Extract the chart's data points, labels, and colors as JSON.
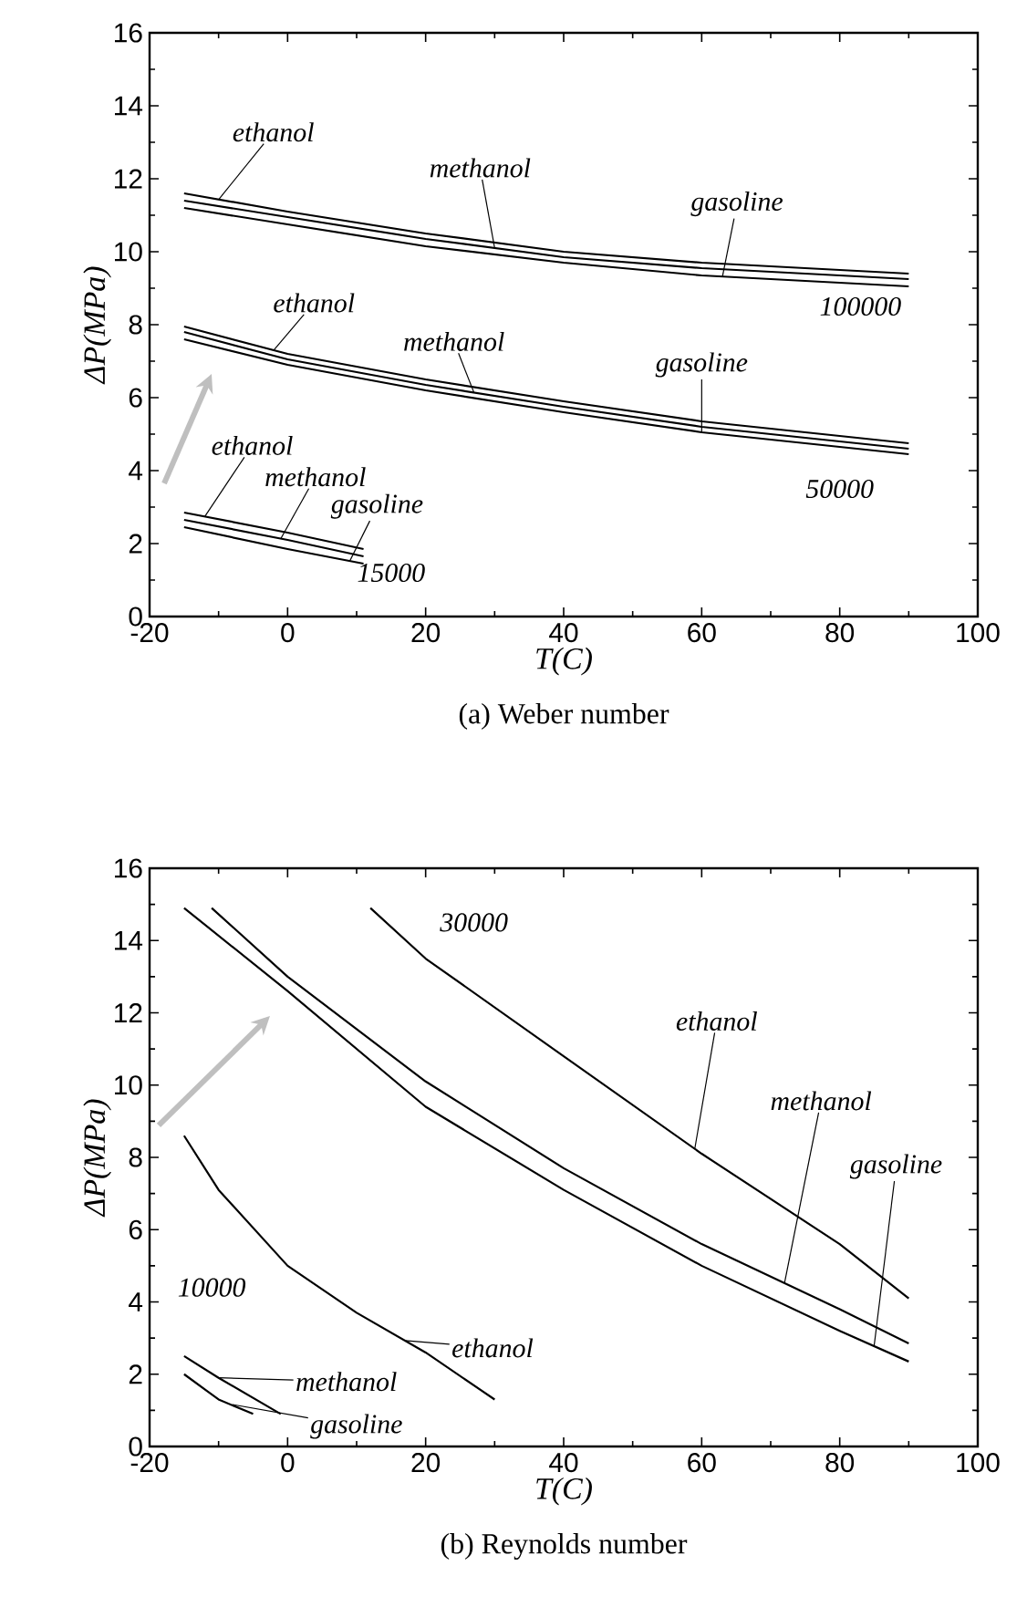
{
  "chart_data": [
    {
      "type": "line",
      "title": "(a) Weber number",
      "xlabel": "T(C)",
      "ylabel": "ΔP(MPa)",
      "xlim": [
        -20,
        100
      ],
      "ylim": [
        0,
        16
      ],
      "xticks": [
        -20,
        0,
        20,
        40,
        60,
        80,
        100
      ],
      "yticks": [
        0,
        2,
        4,
        6,
        8,
        10,
        12,
        14,
        16
      ],
      "marker": "none",
      "line_style": "solid",
      "series": [
        {
          "color": "#000000",
          "x": [
            -15,
            0,
            20,
            40,
            60,
            90
          ],
          "values": [
            11.6,
            11.1,
            10.5,
            10.0,
            9.7,
            9.4
          ]
        },
        {
          "color": "#000000",
          "x": [
            -15,
            0,
            20,
            40,
            60,
            90
          ],
          "values": [
            11.4,
            10.95,
            10.35,
            9.85,
            9.55,
            9.25
          ]
        },
        {
          "color": "#000000",
          "x": [
            -15,
            0,
            20,
            40,
            60,
            90
          ],
          "values": [
            11.2,
            10.75,
            10.15,
            9.7,
            9.35,
            9.05
          ]
        },
        {
          "color": "#000000",
          "x": [
            -15,
            0,
            20,
            40,
            60,
            90
          ],
          "values": [
            7.95,
            7.2,
            6.5,
            5.9,
            5.35,
            4.75
          ]
        },
        {
          "color": "#000000",
          "x": [
            -15,
            0,
            20,
            40,
            60,
            90
          ],
          "values": [
            7.8,
            7.05,
            6.35,
            5.75,
            5.2,
            4.6
          ]
        },
        {
          "color": "#000000",
          "x": [
            -15,
            0,
            20,
            40,
            60,
            90
          ],
          "values": [
            7.6,
            6.9,
            6.2,
            5.6,
            5.05,
            4.45
          ]
        },
        {
          "color": "#000000",
          "x": [
            -15,
            0,
            11
          ],
          "values": [
            2.85,
            2.3,
            1.85
          ]
        },
        {
          "color": "#000000",
          "x": [
            -15,
            0,
            11
          ],
          "values": [
            2.65,
            2.1,
            1.65
          ]
        },
        {
          "color": "#000000",
          "x": [
            -15,
            0,
            11
          ],
          "values": [
            2.45,
            1.85,
            1.45
          ]
        }
      ],
      "annotations": [
        {
          "text": "ethanol",
          "x": -10,
          "y": 11.43
        },
        {
          "text": "methanol",
          "x": 30,
          "y": 10.1
        },
        {
          "text": "gasoline",
          "x": 63,
          "y": 9.31
        },
        "100000",
        {
          "text": "ethanol",
          "x": -2,
          "y": 7.3
        },
        {
          "text": "methanol",
          "x": 27,
          "y": 6.14
        },
        {
          "text": "gasoline",
          "x": 60,
          "y": 5.05
        },
        "50000",
        {
          "text": "ethanol",
          "x": -12,
          "y": 2.74
        },
        {
          "text": "methanol",
          "x": -1,
          "y": 2.13
        },
        {
          "text": "gasoline",
          "x": 9,
          "y": 1.52
        },
        "15000"
      ]
    },
    {
      "type": "line",
      "title": "(b) Reynolds number",
      "xlabel": "T(C)",
      "ylabel": "ΔP(MPa)",
      "xlim": [
        -20,
        100
      ],
      "ylim": [
        0,
        16
      ],
      "xticks": [
        -20,
        0,
        20,
        40,
        60,
        80,
        100
      ],
      "yticks": [
        0,
        2,
        4,
        6,
        8,
        10,
        12,
        14,
        16
      ],
      "marker": "none",
      "line_style": "solid",
      "series": [
        {
          "color": "#000000",
          "x": [
            12,
            20,
            40,
            60,
            80,
            90
          ],
          "values": [
            14.9,
            13.5,
            10.8,
            8.1,
            5.6,
            4.1
          ]
        },
        {
          "color": "#000000",
          "x": [
            -11,
            0,
            20,
            40,
            60,
            80,
            90
          ],
          "values": [
            14.9,
            13.0,
            10.1,
            7.7,
            5.6,
            3.8,
            2.85
          ]
        },
        {
          "color": "#000000",
          "x": [
            -15,
            0,
            20,
            40,
            60,
            80,
            90
          ],
          "values": [
            14.9,
            12.6,
            9.4,
            7.1,
            5.0,
            3.2,
            2.35
          ]
        },
        {
          "color": "#000000",
          "x": [
            -15,
            -10,
            0,
            10,
            20,
            30
          ],
          "values": [
            8.6,
            7.1,
            5.0,
            3.7,
            2.6,
            1.3
          ]
        },
        {
          "color": "#000000",
          "x": [
            -15,
            -10,
            -1
          ],
          "values": [
            2.5,
            1.9,
            0.9
          ]
        },
        {
          "color": "#000000",
          "x": [
            -15,
            -10,
            -5
          ],
          "values": [
            2.0,
            1.3,
            0.9
          ]
        }
      ],
      "annotations": [
        "30000",
        {
          "text": "ethanol",
          "x": 59,
          "y": 8.24
        },
        {
          "text": "methanol",
          "x": 72,
          "y": 4.52
        },
        {
          "text": "gasoline",
          "x": 85,
          "y": 2.8
        },
        "10000",
        {
          "text": "ethanol",
          "x": 17,
          "y": 2.93
        },
        {
          "text": "methanol",
          "x": -10,
          "y": 1.9
        },
        {
          "text": "gasoline",
          "x": -8,
          "y": 1.16
        }
      ]
    }
  ]
}
